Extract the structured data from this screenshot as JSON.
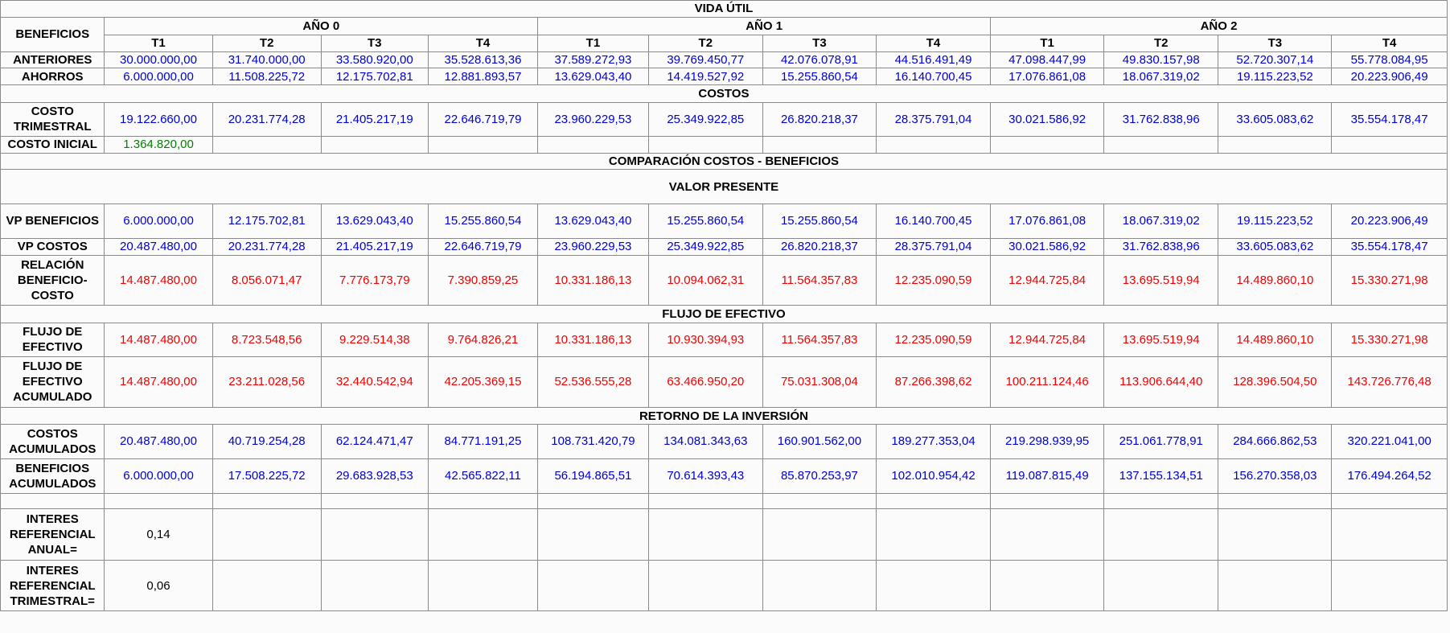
{
  "title": "VIDA ÚTIL",
  "corner": "BENEFICIOS",
  "years": [
    "AÑO 0",
    "AÑO 1",
    "AÑO 2"
  ],
  "quarters": [
    "T1",
    "T2",
    "T3",
    "T4"
  ],
  "blocks": [
    {
      "label": "ANTERIORES",
      "color": "blue",
      "values": [
        "30.000.000,00",
        "31.740.000,00",
        "33.580.920,00",
        "35.528.613,36",
        "37.589.272,93",
        "39.769.450,77",
        "42.076.078,91",
        "44.516.491,49",
        "47.098.447,99",
        "49.830.157,98",
        "52.720.307,14",
        "55.778.084,95"
      ]
    },
    {
      "label": "AHORROS",
      "color": "blue",
      "values": [
        "6.000.000,00",
        "11.508.225,72",
        "12.175.702,81",
        "12.881.893,57",
        "13.629.043,40",
        "14.419.527,92",
        "15.255.860,54",
        "16.140.700,45",
        "17.076.861,08",
        "18.067.319,02",
        "19.115.223,52",
        "20.223.906,49"
      ]
    },
    {
      "section": "COSTOS"
    },
    {
      "label": "COSTO TRIMESTRAL",
      "color": "blue",
      "values": [
        "19.122.660,00",
        "20.231.774,28",
        "21.405.217,19",
        "22.646.719,79",
        "23.960.229,53",
        "25.349.922,85",
        "26.820.218,37",
        "28.375.791,04",
        "30.021.586,92",
        "31.762.838,96",
        "33.605.083,62",
        "35.554.178,47"
      ]
    },
    {
      "label": "COSTO INICIAL",
      "color": "green",
      "values": [
        "1.364.820,00"
      ]
    },
    {
      "section": "COMPARACIÓN COSTOS - BENEFICIOS"
    },
    {
      "section": "VALOR PRESENTE"
    },
    {
      "label": "VP BENEFICIOS",
      "color": "blue",
      "values": [
        "6.000.000,00",
        "12.175.702,81",
        "13.629.043,40",
        "15.255.860,54",
        "13.629.043,40",
        "15.255.860,54",
        "15.255.860,54",
        "16.140.700,45",
        "17.076.861,08",
        "18.067.319,02",
        "19.115.223,52",
        "20.223.906,49"
      ]
    },
    {
      "label": "VP  COSTOS",
      "color": "blue",
      "values": [
        "20.487.480,00",
        "20.231.774,28",
        "21.405.217,19",
        "22.646.719,79",
        "23.960.229,53",
        "25.349.922,85",
        "26.820.218,37",
        "28.375.791,04",
        "30.021.586,92",
        "31.762.838,96",
        "33.605.083,62",
        "35.554.178,47"
      ]
    },
    {
      "label": "RELACIÓN BENEFICIO-COSTO",
      "color": "red",
      "values": [
        "14.487.480,00",
        "8.056.071,47",
        "7.776.173,79",
        "7.390.859,25",
        "10.331.186,13",
        "10.094.062,31",
        "11.564.357,83",
        "12.235.090,59",
        "12.944.725,84",
        "13.695.519,94",
        "14.489.860,10",
        "15.330.271,98"
      ]
    },
    {
      "section": "FLUJO DE EFECTIVO"
    },
    {
      "label": "FLUJO DE EFECTIVO",
      "color": "red",
      "values": [
        "14.487.480,00",
        "8.723.548,56",
        "9.229.514,38",
        "9.764.826,21",
        "10.331.186,13",
        "10.930.394,93",
        "11.564.357,83",
        "12.235.090,59",
        "12.944.725,84",
        "13.695.519,94",
        "14.489.860,10",
        "15.330.271,98"
      ]
    },
    {
      "label": "FLUJO DE EFECTIVO ACUMULADO",
      "color": "red",
      "values": [
        "14.487.480,00",
        "23.211.028,56",
        "32.440.542,94",
        "42.205.369,15",
        "52.536.555,28",
        "63.466.950,20",
        "75.031.308,04",
        "87.266.398,62",
        "100.211.124,46",
        "113.906.644,40",
        "128.396.504,50",
        "143.726.776,48"
      ]
    },
    {
      "section": "RETORNO DE LA INVERSIÓN"
    },
    {
      "label": "COSTOS ACUMULADOS",
      "color": "blue",
      "values": [
        "20.487.480,00",
        "40.719.254,28",
        "62.124.471,47",
        "84.771.191,25",
        "108.731.420,79",
        "134.081.343,63",
        "160.901.562,00",
        "189.277.353,04",
        "219.298.939,95",
        "251.061.778,91",
        "284.666.862,53",
        "320.221.041,00"
      ]
    },
    {
      "label": "BENEFICIOS ACUMULADOS",
      "color": "blue",
      "values": [
        "6.000.000,00",
        "17.508.225,72",
        "29.683.928,53",
        "42.565.822,11",
        "56.194.865,51",
        "70.614.393,43",
        "85.870.253,97",
        "102.010.954,42",
        "119.087.815,49",
        "137.155.134,51",
        "156.270.358,03",
        "176.494.264,52"
      ]
    },
    {
      "label": "INTERES REFERENCIAL ANUAL=",
      "color": "black",
      "values": [
        "0,14"
      ]
    },
    {
      "label": "INTERES REFERENCIAL TRIMESTRAL=",
      "color": "black",
      "values": [
        "0,06"
      ]
    }
  ]
}
